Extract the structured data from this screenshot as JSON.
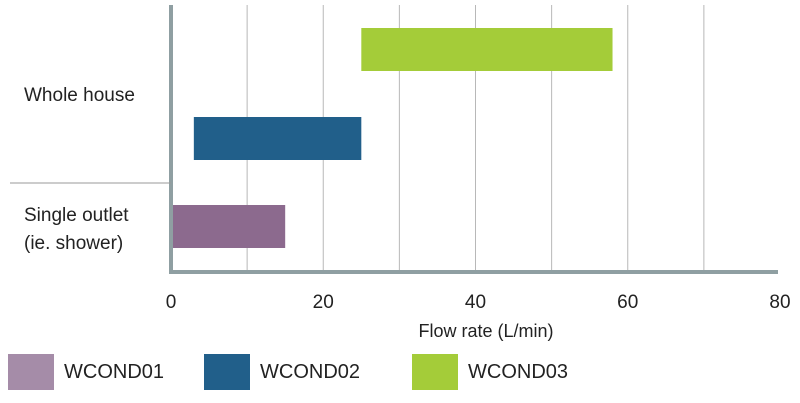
{
  "chart_data": {
    "type": "bar",
    "orientation": "horizontal",
    "subtype": "floating-range",
    "title": "",
    "xlabel": "Flow rate (L/min)",
    "ylabel": "",
    "xlim": [
      0,
      80
    ],
    "xticks": [
      "0",
      "20",
      "40",
      "60",
      "80"
    ],
    "grid": "vertical",
    "legend_position": "bottom",
    "categories": [
      {
        "label_lines": [
          "Whole house"
        ]
      },
      {
        "label_lines": [
          "Single outlet",
          "(ie. shower)"
        ]
      }
    ],
    "series": [
      {
        "name": "WCOND01",
        "color": "#8c6a8e",
        "legend_color": "#a58ca8",
        "ranges": [
          {
            "category": 1,
            "start": 0,
            "end": 15
          }
        ]
      },
      {
        "name": "WCOND02",
        "color": "#215f8a",
        "legend_color": "#215f8a",
        "ranges": [
          {
            "category": 0,
            "start": 3,
            "end": 25
          }
        ]
      },
      {
        "name": "WCOND03",
        "color": "#a4cc39",
        "legend_color": "#a4cc39",
        "ranges": [
          {
            "category": 0,
            "start": 25,
            "end": 58
          }
        ]
      }
    ]
  }
}
